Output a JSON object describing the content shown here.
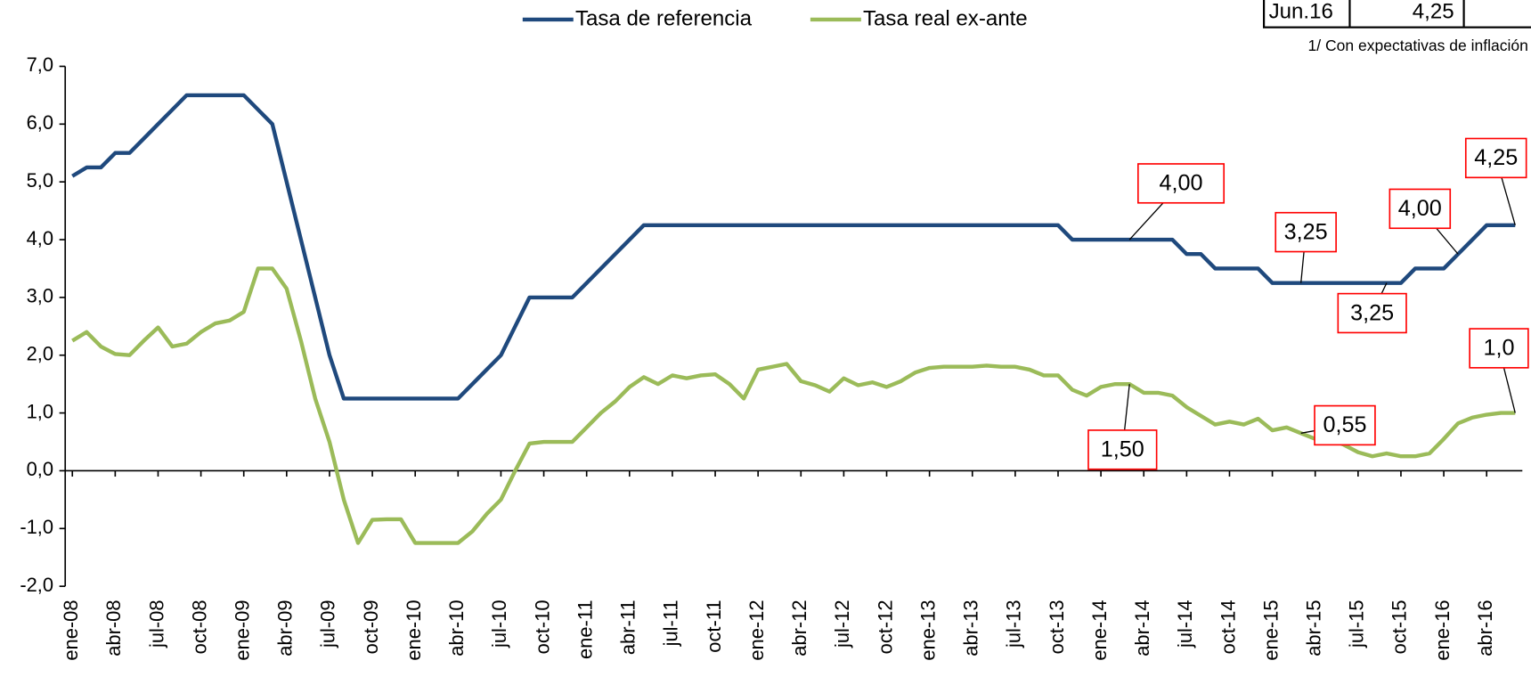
{
  "chart_data": {
    "type": "line",
    "categories": [
      "ene-08",
      null,
      null,
      "abr-08",
      null,
      null,
      "jul-08",
      null,
      null,
      "oct-08",
      null,
      null,
      "ene-09",
      null,
      null,
      "abr-09",
      null,
      null,
      "jul-09",
      null,
      null,
      "oct-09",
      null,
      null,
      "ene-10",
      null,
      null,
      "abr-10",
      null,
      null,
      "jul-10",
      null,
      null,
      "oct-10",
      null,
      null,
      "ene-11",
      null,
      null,
      "abr-11",
      null,
      null,
      "jul-11",
      null,
      null,
      "oct-11",
      null,
      null,
      "ene-12",
      null,
      null,
      "abr-12",
      null,
      null,
      "jul-12",
      null,
      null,
      "oct-12",
      null,
      null,
      "ene-13",
      null,
      null,
      "abr-13",
      null,
      null,
      "jul-13",
      null,
      null,
      "oct-13",
      null,
      null,
      "ene-14",
      null,
      null,
      "abr-14",
      null,
      null,
      "jul-14",
      null,
      null,
      "oct-14",
      null,
      null,
      "ene-15",
      null,
      null,
      "abr-15",
      null,
      null,
      "jul-15",
      null,
      null,
      "oct-15",
      null,
      null,
      "ene-16",
      null,
      null,
      "abr-16",
      null,
      null
    ],
    "series": [
      {
        "name": "Tasa de referencia",
        "color": "#1f497d",
        "values": [
          5.1,
          5.25,
          5.25,
          5.5,
          5.5,
          5.75,
          6.0,
          6.25,
          6.5,
          6.5,
          6.5,
          6.5,
          6.5,
          6.25,
          6.0,
          5.0,
          4.0,
          3.0,
          2.0,
          1.25,
          1.25,
          1.25,
          1.25,
          1.25,
          1.25,
          1.25,
          1.25,
          1.25,
          1.5,
          1.75,
          2.0,
          2.5,
          3.0,
          3.0,
          3.0,
          3.0,
          3.25,
          3.5,
          3.75,
          4.0,
          4.25,
          4.25,
          4.25,
          4.25,
          4.25,
          4.25,
          4.25,
          4.25,
          4.25,
          4.25,
          4.25,
          4.25,
          4.25,
          4.25,
          4.25,
          4.25,
          4.25,
          4.25,
          4.25,
          4.25,
          4.25,
          4.25,
          4.25,
          4.25,
          4.25,
          4.25,
          4.25,
          4.25,
          4.25,
          4.25,
          4.0,
          4.0,
          4.0,
          4.0,
          4.0,
          4.0,
          4.0,
          4.0,
          3.75,
          3.75,
          3.5,
          3.5,
          3.5,
          3.5,
          3.25,
          3.25,
          3.25,
          3.25,
          3.25,
          3.25,
          3.25,
          3.25,
          3.25,
          3.25,
          3.5,
          3.5,
          3.5,
          3.75,
          4.0,
          4.25,
          4.25,
          4.25
        ]
      },
      {
        "name": "Tasa real ex-ante",
        "color": "#9bbb59",
        "values": [
          2.25,
          2.4,
          2.15,
          2.02,
          2.0,
          2.25,
          2.48,
          2.15,
          2.2,
          2.4,
          2.55,
          2.6,
          2.75,
          3.5,
          3.5,
          3.15,
          2.25,
          1.25,
          0.5,
          -0.5,
          -1.25,
          -0.85,
          -0.84,
          -0.84,
          -1.25,
          -1.25,
          -1.25,
          -1.25,
          -1.05,
          -0.75,
          -0.5,
          0.0,
          0.47,
          0.5,
          0.5,
          0.5,
          0.75,
          1.0,
          1.2,
          1.45,
          1.62,
          1.5,
          1.65,
          1.6,
          1.65,
          1.67,
          1.5,
          1.25,
          1.75,
          1.8,
          1.85,
          1.55,
          1.48,
          1.37,
          1.6,
          1.48,
          1.53,
          1.45,
          1.55,
          1.7,
          1.78,
          1.8,
          1.8,
          1.8,
          1.82,
          1.8,
          1.8,
          1.75,
          1.65,
          1.65,
          1.4,
          1.3,
          1.45,
          1.5,
          1.5,
          1.35,
          1.35,
          1.3,
          1.1,
          0.95,
          0.8,
          0.85,
          0.8,
          0.9,
          0.7,
          0.75,
          0.65,
          0.55,
          0.55,
          0.45,
          0.32,
          0.25,
          0.3,
          0.25,
          0.25,
          0.3,
          0.55,
          0.82,
          0.92,
          0.97,
          1.0,
          1.0
        ]
      }
    ],
    "ylim": [
      -2.0,
      7.0
    ],
    "yticks": [
      {
        "value": -2,
        "label": "-2,0"
      },
      {
        "value": -1,
        "label": "-1,0"
      },
      {
        "value": 0,
        "label": "0,0"
      },
      {
        "value": 1,
        "label": "1,0"
      },
      {
        "value": 2,
        "label": "2,0"
      },
      {
        "value": 3,
        "label": "3,0"
      },
      {
        "value": 4,
        "label": "4,0"
      },
      {
        "value": 5,
        "label": "5,0"
      },
      {
        "value": 6,
        "label": "6,0"
      },
      {
        "value": 7,
        "label": "7,0"
      }
    ],
    "legend": "top",
    "annotations": [
      "4,00",
      "3,25",
      "3,25",
      "4,00",
      "4,25",
      "1,50",
      "0,55",
      "1,0"
    ]
  },
  "table": {
    "rows": [
      [
        "Jun.16",
        "4,25"
      ]
    ]
  },
  "note": "1/ Con expectativas de inflación"
}
